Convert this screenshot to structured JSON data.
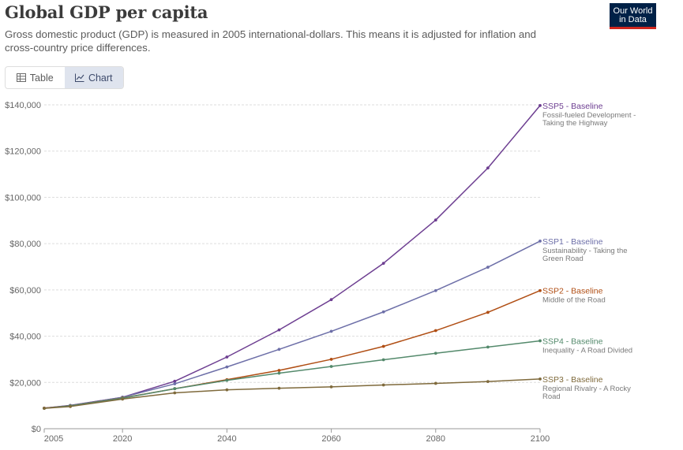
{
  "header": {
    "title": "Global GDP per capita",
    "subtitle": "Gross domestic product (GDP) is measured in 2005 international-dollars. This means it is adjusted for inflation and cross-country price differences."
  },
  "logo": {
    "line1": "Our World",
    "line2": "in Data",
    "color": "#002147",
    "accent": "#ce261e"
  },
  "tabs": [
    {
      "label": "Table",
      "icon": "table-icon",
      "active": false
    },
    {
      "label": "Chart",
      "icon": "line-chart-icon",
      "active": true
    }
  ],
  "chart_data": {
    "type": "line",
    "title": "Global GDP per capita",
    "xlabel": "",
    "ylabel": "",
    "xlim": [
      2005,
      2100
    ],
    "ylim": [
      0,
      140000
    ],
    "x_ticks": [
      2005,
      2020,
      2040,
      2060,
      2080,
      2100
    ],
    "y_ticks": [
      0,
      20000,
      40000,
      60000,
      80000,
      100000,
      120000,
      140000
    ],
    "y_tick_labels": [
      "$0",
      "$20,000",
      "$40,000",
      "$60,000",
      "$80,000",
      "$100,000",
      "$120,000",
      "$140,000"
    ],
    "grid": "horizontal-dashed",
    "legend": "right-end-labels",
    "x": [
      2005,
      2010,
      2020,
      2030,
      2040,
      2050,
      2060,
      2070,
      2080,
      2090,
      2100
    ],
    "series": [
      {
        "name": "SSP5 - Baseline",
        "description": [
          "Fossil-fueled Development -",
          "Taking the Highway"
        ],
        "color": "#6d3e91",
        "values": [
          8900,
          10100,
          13600,
          20500,
          31000,
          42700,
          55800,
          71500,
          90200,
          112700,
          139700
        ]
      },
      {
        "name": "SSP1 - Baseline",
        "description": [
          "Sustainability - Taking the",
          "Green Road"
        ],
        "color": "#6d6fa8",
        "values": [
          8900,
          10000,
          13600,
          19400,
          26700,
          34300,
          42100,
          50500,
          59700,
          69800,
          81100
        ]
      },
      {
        "name": "SSP2 - Baseline",
        "description": [
          "Middle of the Road"
        ],
        "color": "#b04e14",
        "values": [
          8900,
          9900,
          13300,
          17300,
          21200,
          25200,
          30000,
          35600,
          42400,
          50300,
          59700
        ]
      },
      {
        "name": "SSP4 - Baseline",
        "description": [
          "Inequality - A Road Divided"
        ],
        "color": "#53896b",
        "values": [
          8800,
          9900,
          13200,
          17300,
          20900,
          24000,
          26900,
          29800,
          32600,
          35300,
          38000
        ]
      },
      {
        "name": "SSP3 - Baseline",
        "description": [
          "Regional Rivalry - A Rocky",
          "Road"
        ],
        "color": "#7f6a3c",
        "values": [
          8800,
          9600,
          12800,
          15500,
          16800,
          17500,
          18100,
          18900,
          19600,
          20400,
          21500
        ]
      }
    ]
  }
}
